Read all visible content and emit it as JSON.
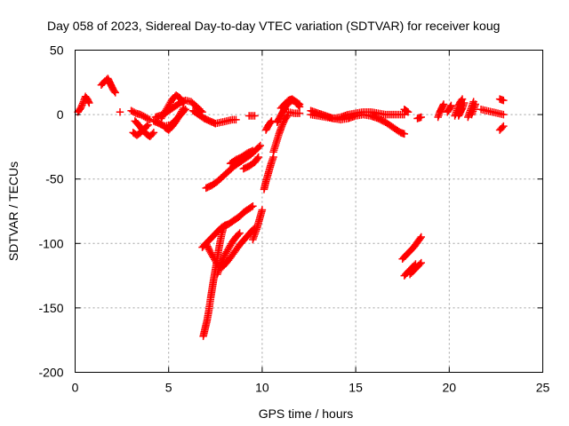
{
  "chart_data": {
    "type": "scatter",
    "title": "Day 058 of 2023, Sidereal Day-to-day VTEC variation (SDTVAR) for receiver koug",
    "xlabel": "GPS time / hours",
    "ylabel": "SDTVAR / TECUs",
    "xlim": [
      0,
      25
    ],
    "ylim": [
      -200,
      50
    ],
    "xticks": [
      0,
      5,
      10,
      15,
      20,
      25
    ],
    "yticks": [
      -200,
      -150,
      -100,
      -50,
      0,
      50
    ],
    "xtick_labels": [
      "0",
      "5",
      "10",
      "15",
      "20",
      "25"
    ],
    "ytick_labels": [
      "-200",
      "-150",
      "-100",
      "-50",
      "0",
      "50"
    ],
    "grid": true,
    "marker": "+",
    "color": "#ff0000",
    "series": [
      {
        "name": "SDTVAR",
        "segments": [
          [
            [
              0.15,
              2
            ],
            [
              0.3,
              5
            ],
            [
              0.45,
              10
            ],
            [
              0.55,
              14
            ],
            [
              0.65,
              12
            ],
            [
              0.75,
              9
            ]
          ],
          [
            [
              1.4,
              23
            ],
            [
              1.6,
              26
            ],
            [
              1.75,
              28
            ],
            [
              1.85,
              25
            ],
            [
              1.95,
              22
            ],
            [
              2.05,
              19
            ],
            [
              2.15,
              17
            ]
          ],
          [
            [
              2.4,
              2
            ]
          ],
          [
            [
              3.0,
              3
            ],
            [
              3.25,
              1
            ],
            [
              3.5,
              0
            ],
            [
              3.75,
              -2
            ],
            [
              4.0,
              -4
            ]
          ],
          [
            [
              3.2,
              -5
            ],
            [
              3.4,
              -8
            ],
            [
              3.6,
              -12
            ],
            [
              3.8,
              -15
            ],
            [
              4.0,
              -17
            ],
            [
              4.2,
              -14
            ]
          ],
          [
            [
              3.1,
              -14
            ],
            [
              3.3,
              -16
            ],
            [
              3.5,
              -14
            ],
            [
              3.7,
              -11
            ],
            [
              3.9,
              -8
            ]
          ],
          [
            [
              4.2,
              -5
            ],
            [
              4.5,
              -7
            ],
            [
              4.8,
              -9
            ],
            [
              5.1,
              -8
            ],
            [
              5.4,
              -4
            ],
            [
              5.7,
              1
            ],
            [
              5.9,
              4
            ]
          ],
          [
            [
              4.3,
              -2
            ],
            [
              4.7,
              0
            ],
            [
              5.0,
              3
            ],
            [
              5.3,
              6
            ],
            [
              5.6,
              9
            ],
            [
              5.9,
              11
            ],
            [
              6.2,
              10
            ],
            [
              6.5,
              6
            ],
            [
              6.8,
              2
            ]
          ],
          [
            [
              4.6,
              -3
            ],
            [
              4.8,
              2
            ],
            [
              5.0,
              7
            ],
            [
              5.2,
              12
            ],
            [
              5.4,
              15
            ],
            [
              5.6,
              13
            ],
            [
              5.8,
              9
            ]
          ],
          [
            [
              4.8,
              -10
            ],
            [
              5.0,
              -12
            ],
            [
              5.2,
              -9
            ],
            [
              5.4,
              -5
            ],
            [
              5.6,
              0
            ],
            [
              5.8,
              5
            ]
          ],
          [
            [
              6.3,
              3
            ],
            [
              6.6,
              0
            ],
            [
              6.9,
              -3
            ],
            [
              7.2,
              -5
            ],
            [
              7.5,
              -7
            ],
            [
              7.8,
              -6
            ],
            [
              8.1,
              -5
            ],
            [
              8.4,
              -4
            ],
            [
              8.6,
              -4
            ]
          ],
          [
            [
              9.3,
              -1
            ],
            [
              9.6,
              -1
            ]
          ],
          [
            [
              6.8,
              -103
            ],
            [
              7.0,
              -100
            ],
            [
              7.2,
              -97
            ],
            [
              7.4,
              -94
            ],
            [
              7.6,
              -91
            ],
            [
              7.8,
              -88
            ],
            [
              8.0,
              -86
            ],
            [
              8.2,
              -85
            ],
            [
              8.4,
              -83
            ],
            [
              8.6,
              -81
            ],
            [
              8.8,
              -79
            ],
            [
              9.0,
              -76
            ],
            [
              9.2,
              -74
            ],
            [
              9.5,
              -71
            ]
          ],
          [
            [
              7.0,
              -100
            ],
            [
              7.2,
              -106
            ],
            [
              7.4,
              -111
            ],
            [
              7.6,
              -116
            ],
            [
              7.8,
              -119
            ]
          ],
          [
            [
              7.0,
              -57
            ],
            [
              7.3,
              -55
            ],
            [
              7.6,
              -52
            ],
            [
              7.9,
              -48
            ],
            [
              8.2,
              -44
            ],
            [
              8.5,
              -40
            ],
            [
              8.8,
              -37
            ],
            [
              9.1,
              -34
            ],
            [
              9.4,
              -31
            ],
            [
              9.7,
              -27
            ],
            [
              9.9,
              -24
            ]
          ],
          [
            [
              8.3,
              -38
            ],
            [
              8.6,
              -35
            ],
            [
              8.9,
              -33
            ],
            [
              9.2,
              -30
            ],
            [
              9.5,
              -28
            ]
          ],
          [
            [
              9.0,
              -42
            ],
            [
              9.3,
              -40
            ],
            [
              9.6,
              -37
            ],
            [
              9.8,
              -33
            ]
          ],
          [
            [
              6.85,
              -172
            ],
            [
              6.95,
              -166
            ],
            [
              7.05,
              -160
            ],
            [
              7.15,
              -152
            ],
            [
              7.25,
              -142
            ],
            [
              7.35,
              -133
            ],
            [
              7.45,
              -124
            ],
            [
              7.55,
              -116
            ],
            [
              7.65,
              -107
            ],
            [
              7.75,
              -99
            ],
            [
              7.85,
              -92
            ],
            [
              7.95,
              -87
            ]
          ],
          [
            [
              7.6,
              -124
            ],
            [
              7.8,
              -116
            ],
            [
              8.0,
              -109
            ],
            [
              8.2,
              -104
            ],
            [
              8.4,
              -99
            ],
            [
              8.6,
              -95
            ],
            [
              8.8,
              -92
            ]
          ],
          [
            [
              7.9,
              -118
            ],
            [
              8.2,
              -113
            ],
            [
              8.5,
              -107
            ],
            [
              8.8,
              -101
            ],
            [
              9.1,
              -96
            ],
            [
              9.4,
              -91
            ],
            [
              9.6,
              -88
            ]
          ],
          [
            [
              9.5,
              -97
            ],
            [
              9.6,
              -93
            ],
            [
              9.7,
              -89
            ],
            [
              9.8,
              -84
            ],
            [
              9.9,
              -79
            ],
            [
              10.0,
              -74
            ]
          ],
          [
            [
              10.1,
              -58
            ],
            [
              10.2,
              -52
            ],
            [
              10.3,
              -47
            ],
            [
              10.4,
              -42
            ],
            [
              10.5,
              -37
            ],
            [
              10.6,
              -33
            ]
          ],
          [
            [
              10.6,
              -29
            ],
            [
              10.75,
              -22
            ],
            [
              10.9,
              -15
            ],
            [
              11.05,
              -9
            ],
            [
              11.2,
              -4
            ],
            [
              11.35,
              -1
            ]
          ],
          [
            [
              10.2,
              -12
            ],
            [
              10.35,
              -8
            ],
            [
              10.5,
              -5
            ]
          ],
          [
            [
              10.8,
              -6
            ],
            [
              10.95,
              -2
            ],
            [
              11.1,
              2
            ],
            [
              11.25,
              6
            ],
            [
              11.4,
              9
            ],
            [
              11.6,
              11
            ],
            [
              11.8,
              10
            ],
            [
              12.0,
              8
            ]
          ],
          [
            [
              11.0,
              5
            ],
            [
              11.2,
              8
            ],
            [
              11.4,
              11
            ],
            [
              11.6,
              12
            ],
            [
              11.8,
              10
            ],
            [
              12.0,
              6
            ]
          ],
          [
            [
              11.4,
              2
            ],
            [
              11.7,
              1
            ],
            [
              12.0,
              1
            ]
          ],
          [
            [
              12.6,
              3
            ],
            [
              13.0,
              1
            ],
            [
              13.4,
              -1
            ],
            [
              13.8,
              -3
            ],
            [
              14.2,
              -4
            ],
            [
              14.6,
              -3
            ],
            [
              15.0,
              -1
            ],
            [
              15.4,
              0
            ],
            [
              15.8,
              -1
            ],
            [
              16.2,
              -3
            ],
            [
              16.6,
              -6
            ],
            [
              17.0,
              -10
            ],
            [
              17.4,
              -14
            ],
            [
              17.6,
              -15
            ]
          ],
          [
            [
              12.6,
              0
            ],
            [
              13.0,
              -1
            ],
            [
              13.4,
              -2
            ],
            [
              13.8,
              -3
            ],
            [
              14.2,
              -2
            ],
            [
              14.6,
              0
            ],
            [
              15.0,
              1
            ],
            [
              15.4,
              2
            ],
            [
              15.8,
              2
            ],
            [
              16.2,
              1
            ],
            [
              16.6,
              0
            ],
            [
              17.0,
              0
            ],
            [
              17.4,
              0
            ],
            [
              17.6,
              0
            ]
          ],
          [
            [
              17.6,
              4
            ],
            [
              17.8,
              2
            ]
          ],
          [
            [
              17.5,
              -112
            ],
            [
              17.7,
              -109
            ],
            [
              17.9,
              -106
            ],
            [
              18.1,
              -103
            ],
            [
              18.3,
              -99
            ],
            [
              18.5,
              -95
            ]
          ],
          [
            [
              17.6,
              -125
            ],
            [
              17.8,
              -122
            ],
            [
              18.0,
              -119
            ],
            [
              18.2,
              -116
            ]
          ],
          [
            [
              17.9,
              -124
            ],
            [
              18.1,
              -121
            ],
            [
              18.3,
              -118
            ],
            [
              18.5,
              -115
            ]
          ],
          [
            [
              18.3,
              -3
            ],
            [
              18.5,
              -2
            ]
          ],
          [
            [
              19.4,
              -2
            ],
            [
              19.5,
              2
            ],
            [
              19.6,
              5
            ],
            [
              19.7,
              8
            ]
          ],
          [
            [
              19.9,
              2
            ],
            [
              20.0,
              4
            ],
            [
              20.1,
              7
            ]
          ],
          [
            [
              20.3,
              -1
            ],
            [
              20.4,
              3
            ],
            [
              20.5,
              7
            ],
            [
              20.6,
              10
            ],
            [
              20.7,
              12
            ]
          ],
          [
            [
              20.5,
              -1
            ],
            [
              20.6,
              2
            ],
            [
              20.7,
              5
            ],
            [
              20.8,
              9
            ]
          ],
          [
            [
              21.0,
              -2
            ],
            [
              21.1,
              2
            ],
            [
              21.2,
              6
            ],
            [
              21.3,
              10
            ]
          ],
          [
            [
              21.2,
              0
            ],
            [
              21.3,
              4
            ],
            [
              21.4,
              8
            ]
          ],
          [
            [
              21.7,
              4
            ],
            [
              22.0,
              3
            ],
            [
              22.3,
              2
            ],
            [
              22.6,
              1
            ],
            [
              22.9,
              0
            ]
          ],
          [
            [
              22.7,
              12
            ],
            [
              22.9,
              11
            ]
          ],
          [
            [
              22.7,
              -12
            ],
            [
              22.9,
              -9
            ]
          ]
        ]
      }
    ]
  }
}
